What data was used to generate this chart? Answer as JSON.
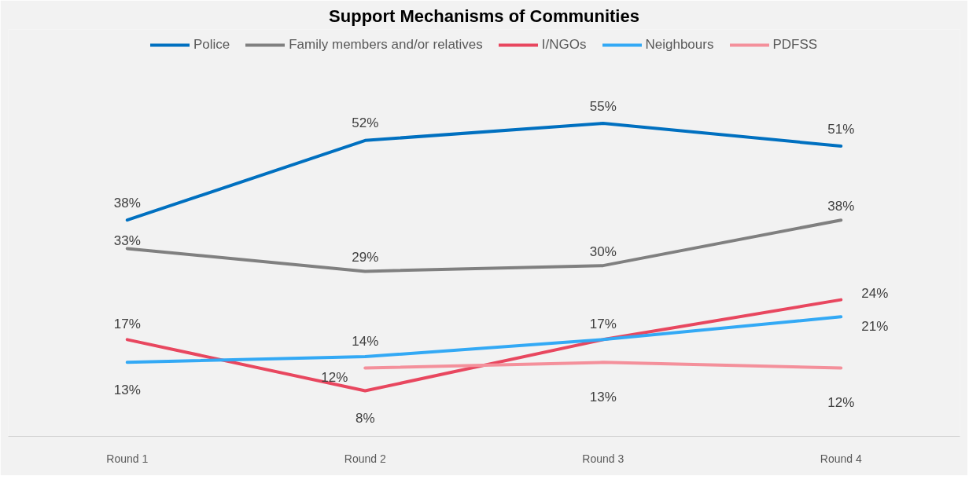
{
  "chart_data": {
    "type": "line",
    "title": "Support Mechanisms of Communities",
    "categories": [
      "Round 1",
      "Round 2",
      "Round 3",
      "Round 4"
    ],
    "legend": "top",
    "marker": "none",
    "line_style": "solid",
    "series": [
      {
        "name": "Police",
        "color": "#0070c0",
        "values": [
          38,
          52,
          55,
          51
        ],
        "value_labels": [
          "38%",
          "52%",
          "55%",
          "51%"
        ]
      },
      {
        "name": "Family members and/or relatives",
        "color": "#808080",
        "values": [
          33,
          29,
          30,
          38
        ],
        "value_labels": [
          "33%",
          "29%",
          "30%",
          "38%"
        ]
      },
      {
        "name": "I/NGOs",
        "color": "#e8475f",
        "values": [
          17,
          8,
          17,
          24
        ],
        "value_labels": [
          "17%",
          "8%",
          "17%",
          "24%"
        ]
      },
      {
        "name": "Neighbours",
        "color": "#33a9f5",
        "values": [
          13,
          14,
          17,
          21
        ],
        "value_labels": [
          "13%",
          "14%",
          null,
          "21%"
        ]
      },
      {
        "name": "PDFSS",
        "color": "#f4909b",
        "values": [
          null,
          12,
          13,
          12
        ],
        "value_labels": [
          null,
          "12%",
          "13%",
          "12%"
        ]
      }
    ]
  }
}
